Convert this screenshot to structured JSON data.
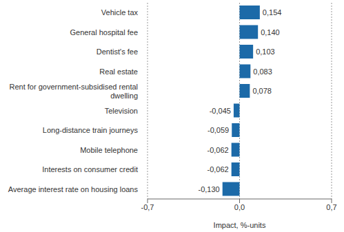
{
  "chart_data": {
    "type": "bar",
    "orientation": "horizontal",
    "categories": [
      "Vehicle tax",
      "General hospital fee",
      "Dentist's fee",
      "Real estate",
      "Rent for government-subsidised rental dwelling",
      "Television",
      "Long-distance train journeys",
      "Mobile telephone",
      "Interests on consumer credit",
      "Average interest rate on housing loans"
    ],
    "values": [
      0.154,
      0.14,
      0.103,
      0.083,
      0.078,
      -0.045,
      -0.059,
      -0.062,
      -0.062,
      -0.13
    ],
    "value_labels": [
      "0,154",
      "0,140",
      "0,103",
      "0,083",
      "0,078",
      "-0,045",
      "-0,059",
      "-0,062",
      "-0,062",
      "-0,130"
    ],
    "data_labels": true,
    "color": "#1c6aa8",
    "xlabel": "Impact, %-units",
    "xlim": [
      -0.7,
      0.7
    ],
    "xticks": [
      {
        "value": -0.7,
        "label": "-0,7"
      },
      {
        "value": 0,
        "label": "0,0"
      },
      {
        "value": 0.7,
        "label": "0,7"
      }
    ],
    "grid": true
  }
}
